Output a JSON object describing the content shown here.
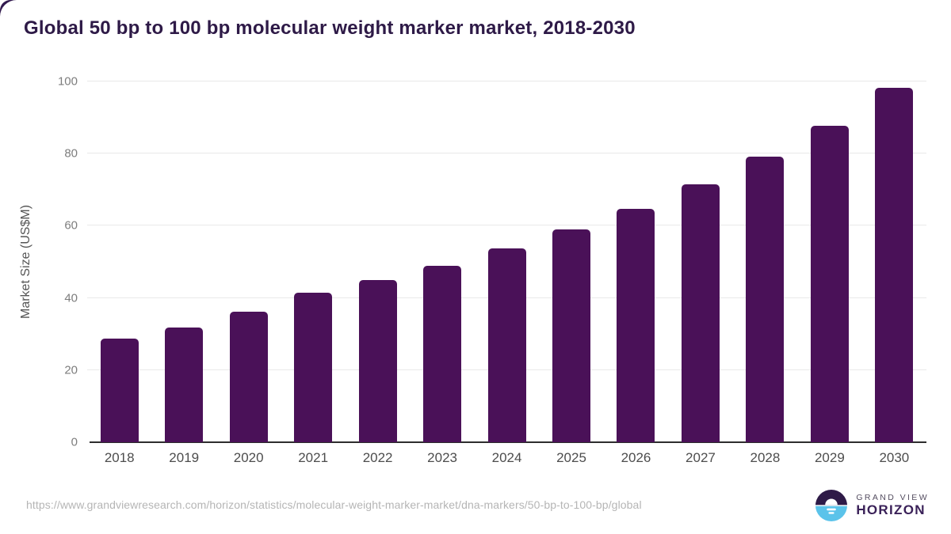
{
  "page": {
    "title": "Global 50 bp to 100 bp molecular weight marker market, 2018-2030",
    "source_url": "https://www.grandviewresearch.com/horizon/statistics/molecular-weight-marker-market/dna-markers/50-bp-to-100-bp/global"
  },
  "chart_data": {
    "type": "bar",
    "title": "Global 50 bp to 100 bp molecular weight marker market, 2018-2030",
    "categories": [
      "2018",
      "2019",
      "2020",
      "2021",
      "2022",
      "2023",
      "2024",
      "2025",
      "2026",
      "2027",
      "2028",
      "2029",
      "2030"
    ],
    "values": [
      28.8,
      31.9,
      36.1,
      41.5,
      44.9,
      49.0,
      53.7,
      59.0,
      64.7,
      71.4,
      79.1,
      87.8,
      98.2
    ],
    "xlabel": "",
    "ylabel": "Market Size (US$M)",
    "ylim": [
      0,
      100
    ],
    "yticks": [
      0,
      20,
      40,
      60,
      80,
      100
    ],
    "grid": true,
    "legend": false,
    "bar_color": "#4a1158"
  },
  "branding": {
    "logo_name": "grand-view-horizon-logo",
    "logo_text_top": "GRAND VIEW",
    "logo_text_bottom": "HORIZON",
    "logo_color_top_half": "#2e1a47",
    "logo_color_bottom_half": "#5bc3ea"
  },
  "colors": {
    "title": "#2e1a47",
    "bar": "#4a1158",
    "axis_line": "#2d2d2d",
    "gridline": "#e9e9e9",
    "y_tick_label": "#7d7d7d",
    "x_tick_label": "#4d4d4d",
    "axis_title": "#555555",
    "source_url": "#b5b5b5",
    "page_corner": "#321a4e",
    "background": "#ffffff"
  }
}
